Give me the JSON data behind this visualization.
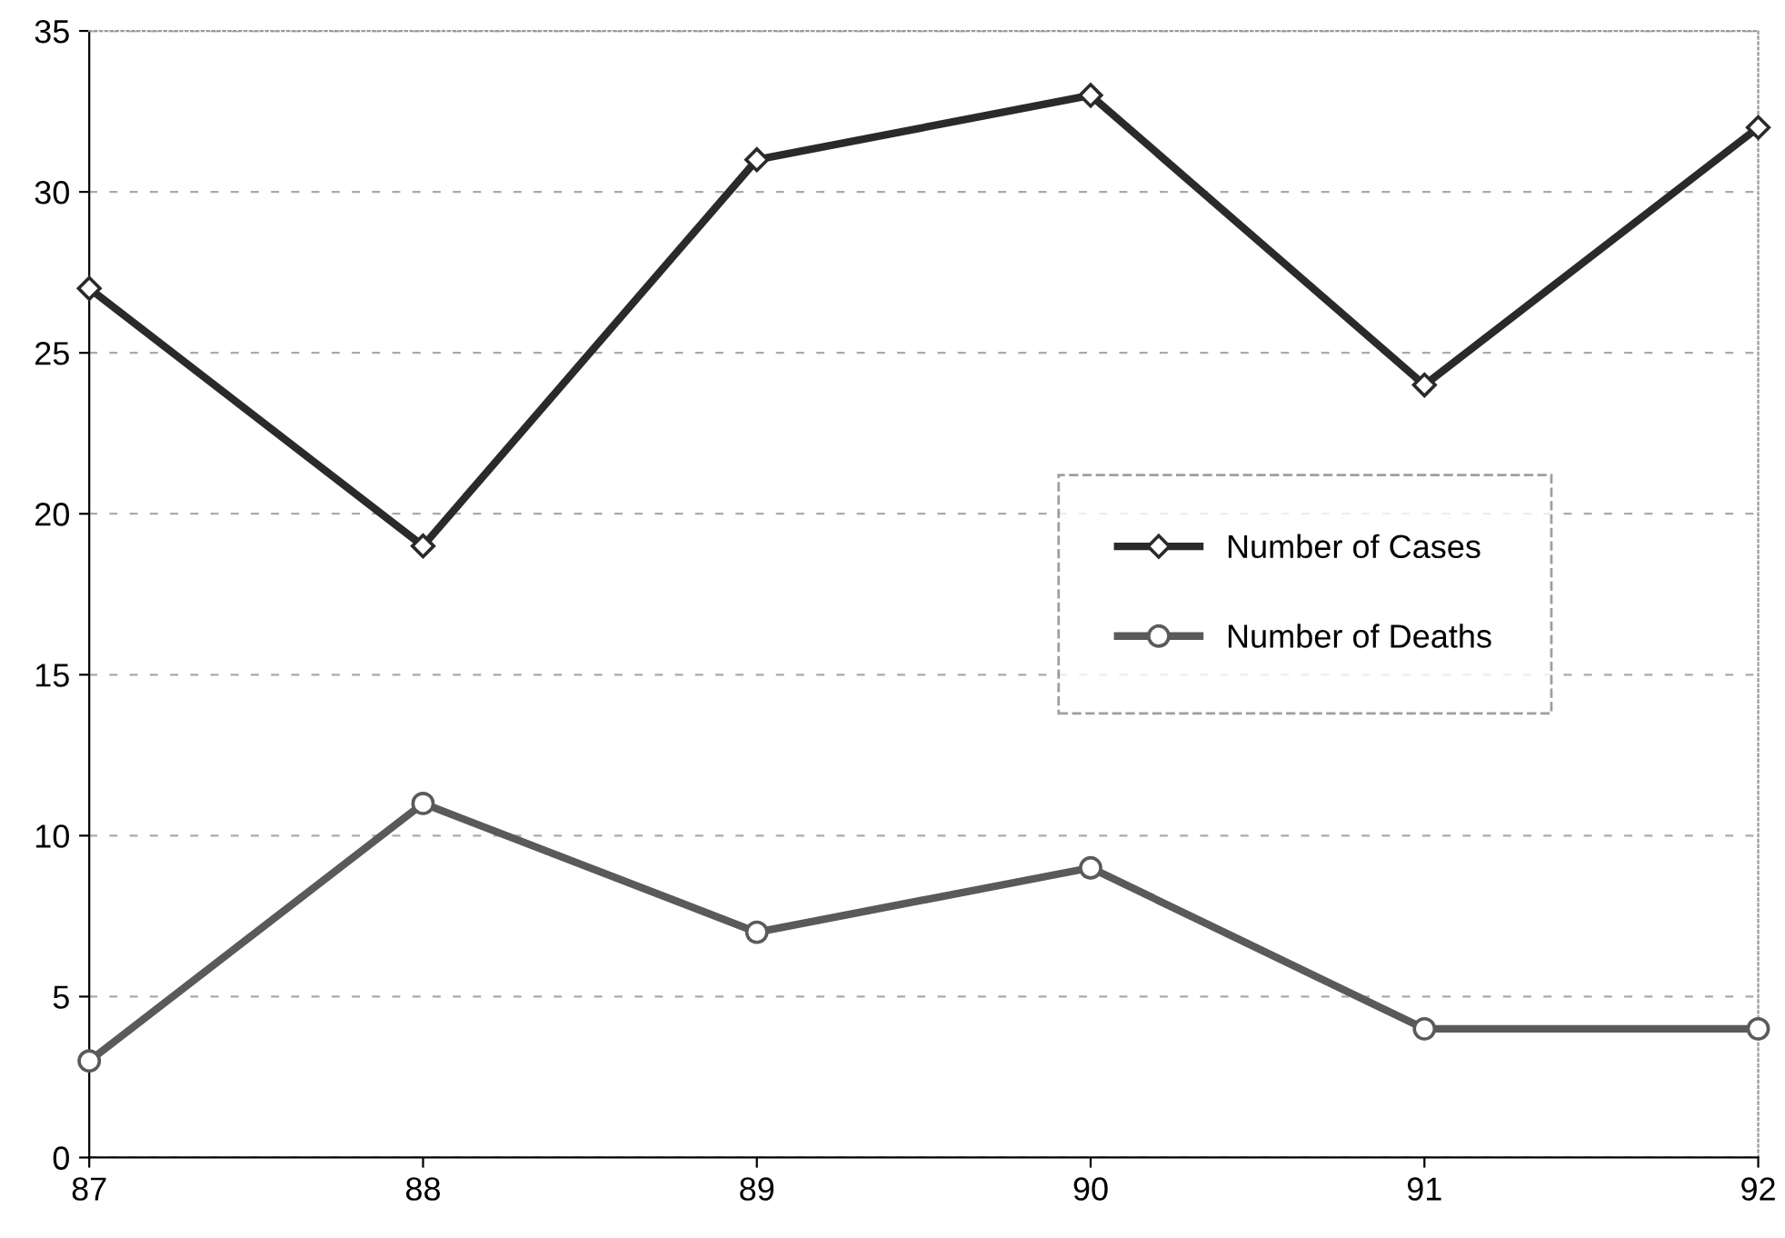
{
  "chart_data": {
    "type": "line",
    "categories": [
      "87",
      "88",
      "89",
      "90",
      "91",
      "92"
    ],
    "series": [
      {
        "name": "Number of Cases",
        "color": "#2a2a2a",
        "marker": "diamond",
        "values": [
          27,
          19,
          31,
          33,
          24,
          32
        ]
      },
      {
        "name": "Number of Deaths",
        "color": "#5a5a5a",
        "marker": "circle",
        "values": [
          3,
          11,
          7,
          9,
          4,
          4
        ]
      }
    ],
    "ylim": [
      0,
      35
    ],
    "yticks": [
      0,
      5,
      10,
      15,
      20,
      25,
      30,
      35
    ],
    "grid": "y",
    "legend": "center right",
    "line_style": "solid"
  }
}
